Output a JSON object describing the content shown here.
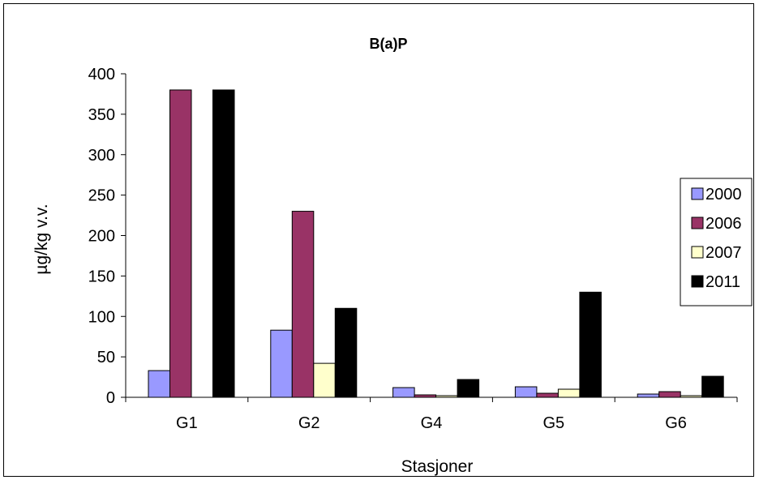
{
  "chart_data": {
    "type": "bar",
    "title": "B(a)P",
    "xlabel": "Stasjoner",
    "ylabel": "µg/kg v.v.",
    "categories": [
      "G1",
      "G2",
      "G4",
      "G5",
      "G6"
    ],
    "ylim": [
      0,
      400
    ],
    "yticks": [
      0,
      50,
      100,
      150,
      200,
      250,
      300,
      350,
      400
    ],
    "grid": false,
    "legend_position": "right",
    "series": [
      {
        "name": "2000",
        "color": "#9999ff",
        "values": [
          33,
          83,
          12,
          13,
          4
        ]
      },
      {
        "name": "2006",
        "color": "#993366",
        "values": [
          380,
          230,
          3,
          5,
          7
        ]
      },
      {
        "name": "2007",
        "color": "#ffffcc",
        "values": [
          0,
          42,
          2,
          10,
          2
        ]
      },
      {
        "name": "2011",
        "color": "#000000",
        "values": [
          380,
          110,
          22,
          130,
          26
        ]
      }
    ]
  }
}
